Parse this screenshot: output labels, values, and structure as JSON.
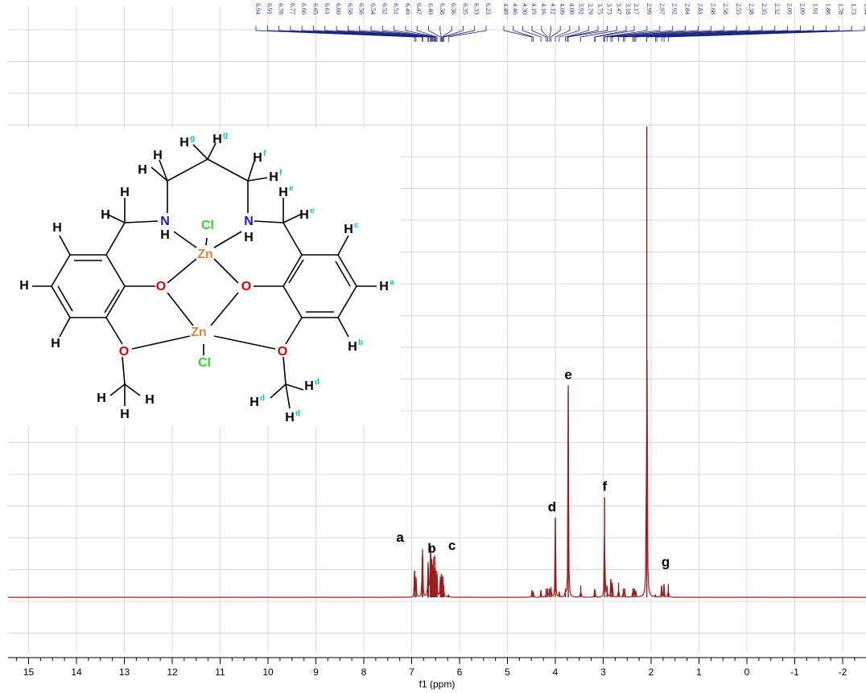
{
  "chart_data": {
    "type": "line",
    "xlabel": "f1 (ppm)",
    "xlim": [
      15.4,
      -2.55
    ],
    "x_reversed": true,
    "x_ticks": [
      15,
      14,
      13,
      12,
      11,
      10,
      9,
      8,
      7,
      6,
      5,
      4,
      3,
      2,
      1,
      0,
      -1,
      -2
    ],
    "grid": true,
    "peak_list": [
      "6.94",
      "6.91",
      "6.78",
      "6.77",
      "6.66",
      "6.65",
      "6.61",
      "6.60",
      "6.58",
      "6.56",
      "6.54",
      "6.52",
      "6.51",
      "6.49",
      "6.47",
      "6.40",
      "6.38",
      "6.36",
      "6.35",
      "6.33",
      "6.23",
      "4.49",
      "4.46",
      "4.30",
      "4.19",
      "4.16",
      "4.12",
      "4.09",
      "4.00",
      "3.92",
      "3.79",
      "3.75",
      "3.73",
      "3.47",
      "3.18",
      "3.17",
      "2.99",
      "2.97",
      "2.92",
      "2.84",
      "2.81",
      "2.68",
      "2.58",
      "2.55",
      "2.38",
      "2.35",
      "2.32",
      "2.09",
      "2.09",
      "1.91",
      "1.88",
      "1.78",
      "1.73",
      "1.64"
    ],
    "peaks": [
      {
        "ppm": 6.94,
        "height": 0.09
      },
      {
        "ppm": 6.91,
        "height": 0.07
      },
      {
        "ppm": 6.78,
        "height": 0.14
      },
      {
        "ppm": 6.77,
        "height": 0.13
      },
      {
        "ppm": 6.66,
        "height": 0.1
      },
      {
        "ppm": 6.65,
        "height": 0.09
      },
      {
        "ppm": 6.61,
        "height": 0.12
      },
      {
        "ppm": 6.6,
        "height": 0.15
      },
      {
        "ppm": 6.58,
        "height": 0.13
      },
      {
        "ppm": 6.56,
        "height": 0.11
      },
      {
        "ppm": 6.54,
        "height": 0.12
      },
      {
        "ppm": 6.52,
        "height": 0.1
      },
      {
        "ppm": 6.51,
        "height": 0.09
      },
      {
        "ppm": 6.49,
        "height": 0.08
      },
      {
        "ppm": 6.47,
        "height": 0.07
      },
      {
        "ppm": 6.4,
        "height": 0.07
      },
      {
        "ppm": 6.38,
        "height": 0.08
      },
      {
        "ppm": 6.36,
        "height": 0.06
      },
      {
        "ppm": 6.35,
        "height": 0.05
      },
      {
        "ppm": 6.33,
        "height": 0.04
      },
      {
        "ppm": 6.23,
        "height": 0.01
      },
      {
        "ppm": 4.49,
        "height": 0.025
      },
      {
        "ppm": 4.46,
        "height": 0.02
      },
      {
        "ppm": 4.3,
        "height": 0.025
      },
      {
        "ppm": 4.19,
        "height": 0.03
      },
      {
        "ppm": 4.16,
        "height": 0.03
      },
      {
        "ppm": 4.12,
        "height": 0.03
      },
      {
        "ppm": 4.09,
        "height": 0.035
      },
      {
        "ppm": 4.0,
        "height": 0.27
      },
      {
        "ppm": 3.92,
        "height": 0.02
      },
      {
        "ppm": 3.79,
        "height": 0.03
      },
      {
        "ppm": 3.73,
        "height": 0.72
      },
      {
        "ppm": 3.47,
        "height": 0.04
      },
      {
        "ppm": 3.18,
        "height": 0.025
      },
      {
        "ppm": 3.17,
        "height": 0.02
      },
      {
        "ppm": 2.97,
        "height": 0.34
      },
      {
        "ppm": 2.92,
        "height": 0.04
      },
      {
        "ppm": 2.84,
        "height": 0.06
      },
      {
        "ppm": 2.81,
        "height": 0.05
      },
      {
        "ppm": 2.68,
        "height": 0.05
      },
      {
        "ppm": 2.58,
        "height": 0.03
      },
      {
        "ppm": 2.55,
        "height": 0.03
      },
      {
        "ppm": 2.38,
        "height": 0.03
      },
      {
        "ppm": 2.35,
        "height": 0.03
      },
      {
        "ppm": 2.32,
        "height": 0.02
      },
      {
        "ppm": 2.09,
        "height": 1.6
      },
      {
        "ppm": 1.91,
        "height": 0.01
      },
      {
        "ppm": 1.78,
        "height": 0.04
      },
      {
        "ppm": 1.73,
        "height": 0.045
      },
      {
        "ppm": 1.64,
        "height": 0.045
      }
    ],
    "peak_assignments": [
      {
        "label": "a",
        "ppm": 6.94
      },
      {
        "label": "b",
        "ppm": 6.58
      },
      {
        "label": "c",
        "ppm": 6.36
      },
      {
        "label": "d",
        "ppm": 4.0
      },
      {
        "label": "e",
        "ppm": 3.73
      },
      {
        "label": "f",
        "ppm": 2.97
      },
      {
        "label": "g",
        "ppm": 1.73
      }
    ]
  },
  "colors": {
    "spectrum": "#9b1c1c",
    "grid": "#d9d9d9",
    "integral_text": "#1a237e",
    "oxygen": "#e00000",
    "nitrogen": "#1515d0",
    "chlorine": "#2ed52e",
    "zinc": "#d4863a",
    "label_cyan": "#00c8d8"
  },
  "structure": {
    "atoms": {
      "h": "H",
      "n": "N",
      "o": "O",
      "cl": "Cl",
      "zn": "Zn"
    },
    "superscripts": {
      "a": "a",
      "b": "b",
      "c": "c",
      "d": "d",
      "e": "e",
      "f": "f",
      "g": "g"
    }
  }
}
